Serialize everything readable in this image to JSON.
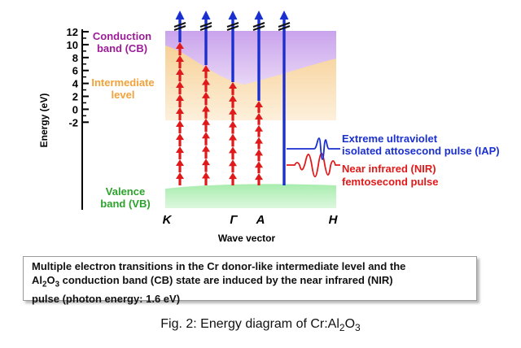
{
  "y_axis": {
    "label": "Energy (eV)",
    "ticks": [
      "12",
      "10",
      "8",
      "6",
      "4",
      "2",
      "0",
      "-2"
    ]
  },
  "x_axis": {
    "label": "Wave vector",
    "points": [
      "K",
      "Γ",
      "A",
      "H"
    ]
  },
  "bands": {
    "conduction": [
      "Conduction",
      "band (CB)"
    ],
    "intermediate": [
      "Intermediate",
      "level"
    ],
    "valence": [
      "Valence",
      "band (VB)"
    ]
  },
  "pulses": {
    "euv": [
      "Extreme ultraviolet",
      "isolated attosecond pulse (IAP)"
    ],
    "nir": [
      "Near infrared (NIR)",
      "femtosecond pulse"
    ]
  },
  "caption_box": {
    "line1": "Multiple electron transitions in the Cr donor-like intermediate level and the",
    "al": "Al",
    "sub2": "2",
    "o": "O",
    "sub3": "3",
    "line2_rest": " conduction band (CB) state are induced by the near infrared (NIR)",
    "line3": "pulse (photon energy: 1.6 eV)"
  },
  "figure_caption": {
    "prefix": "Fig. 2: Energy diagram of Cr:Al",
    "sub2": "2",
    "o": "O",
    "sub3": "3"
  },
  "colors": {
    "conduction": "#9b1c96",
    "intermediate": "#f2a23a",
    "valence": "#2ca22c",
    "nir": "#e01a1a",
    "euv": "#1a2fd0"
  }
}
